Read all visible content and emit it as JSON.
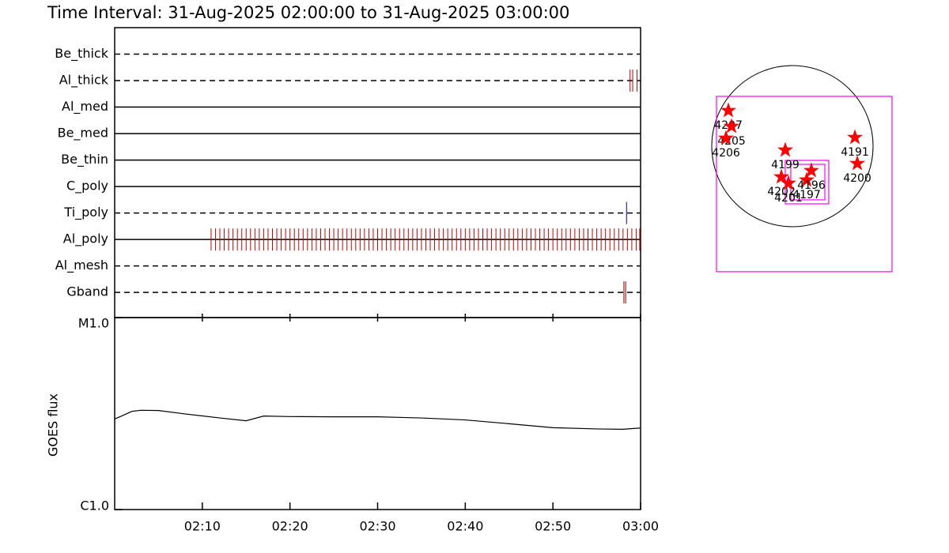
{
  "chart_data": [
    {
      "type": "timeline",
      "title": "Time Interval: 31-Aug-2025 02:00:00 to 31-Aug-2025 03:00:00",
      "xlim": [
        0,
        60
      ],
      "rows": [
        {
          "name": "Be_thick",
          "line": "dashed",
          "color": "#c00000",
          "events": []
        },
        {
          "name": "Al_thick",
          "line": "dashed",
          "color": "#c00000",
          "events": [
            58.8,
            59.1,
            59.6
          ]
        },
        {
          "name": "Al_med",
          "line": "solid",
          "color": "#c00000",
          "events": []
        },
        {
          "name": "Be_med",
          "line": "solid",
          "color": "#c00000",
          "events": []
        },
        {
          "name": "Be_thin",
          "line": "solid",
          "color": "#c00000",
          "events": []
        },
        {
          "name": "C_poly",
          "line": "solid",
          "color": "#c00000",
          "events": []
        },
        {
          "name": "Ti_poly",
          "line": "dashed",
          "color": "#0000c0",
          "events": [
            58.4
          ]
        },
        {
          "name": "Al_poly",
          "line": "solid",
          "color": "#d00000",
          "events": [
            11,
            11.5,
            12,
            12.5,
            13,
            13.5,
            14,
            14.5,
            15,
            15.5,
            16,
            16.5,
            17,
            17.5,
            18,
            18.5,
            19,
            19.5,
            20,
            20.5,
            21,
            21.5,
            22,
            22.5,
            23,
            23.5,
            24,
            24.5,
            25,
            25.5,
            26,
            26.5,
            27,
            27.5,
            28,
            28.5,
            29,
            29.5,
            30,
            30.5,
            31,
            31.5,
            32,
            32.5,
            33,
            33.5,
            34,
            34.5,
            35,
            35.5,
            36,
            36.5,
            37,
            37.5,
            38,
            38.5,
            39,
            39.5,
            40,
            40.5,
            41,
            41.5,
            42,
            42.5,
            43,
            43.5,
            44,
            44.5,
            45,
            45.5,
            46,
            46.5,
            47,
            47.5,
            48,
            48.5,
            49,
            49.5,
            50,
            50.5,
            51,
            51.5,
            52,
            52.5,
            53,
            53.5,
            54,
            54.5,
            55,
            55.5,
            56,
            56.5,
            57,
            57.5,
            58,
            58.5,
            59,
            59.5,
            59.9
          ]
        },
        {
          "name": "Al_mesh",
          "line": "dashed",
          "color": "#c00000",
          "events": []
        },
        {
          "name": "Gband",
          "line": "dashed",
          "color": "#800000",
          "events": [
            58.1,
            58.3
          ]
        }
      ]
    },
    {
      "type": "line",
      "ylabel": "GOES flux",
      "log": true,
      "color": "#000000",
      "xlim": [
        0,
        60
      ],
      "xticks": [
        {
          "value": 10,
          "label": "02:10"
        },
        {
          "value": 20,
          "label": "02:20"
        },
        {
          "value": 30,
          "label": "02:30"
        },
        {
          "value": 40,
          "label": "02:40"
        },
        {
          "value": 50,
          "label": "02:50"
        },
        {
          "value": 60,
          "label": "03:00"
        }
      ],
      "ylim": [
        1e-06,
        1e-05
      ],
      "yticks": [
        {
          "value": 1e-06,
          "label": "C1.0"
        },
        {
          "value": 1e-05,
          "label": "M1.0"
        }
      ],
      "x": [
        0,
        1,
        2,
        3,
        5,
        8,
        12,
        15,
        17,
        20,
        25,
        30,
        35,
        40,
        45,
        50,
        55,
        58,
        60
      ],
      "values": [
        2.96e-06,
        3.1e-06,
        3.25e-06,
        3.29e-06,
        3.28e-06,
        3.15e-06,
        3e-06,
        2.9e-06,
        3.07e-06,
        3.05e-06,
        3.04e-06,
        3.04e-06,
        3e-06,
        2.93e-06,
        2.8e-06,
        2.67e-06,
        2.63e-06,
        2.62e-06,
        2.66e-06
      ]
    },
    {
      "type": "map",
      "radius": 950,
      "disk_color": "#000000",
      "color": "#ff0000",
      "box_color": "#ff00ff",
      "x": [
        -754,
        -717,
        -782,
        -84,
        -130,
        -47,
        168,
        223,
        736,
        764
      ],
      "y": [
        419,
        233,
        93,
        -47,
        -363,
        -438,
        -400,
        -289,
        102,
        -205
      ],
      "labels": [
        "4207",
        "4205",
        "4206",
        "4199",
        "4202",
        "4201",
        "4197",
        "4196",
        "4191",
        "4200"
      ],
      "boxes": [
        {
          "xlim": [
            -894,
            1173
          ],
          "ylim": [
            -1480,
            587
          ]
        },
        {
          "xlim": [
            -84,
            428
          ],
          "ylim": [
            -680,
            -168
          ]
        },
        {
          "xlim": [
            -19,
            382
          ],
          "ylim": [
            -633,
            -214
          ]
        }
      ]
    }
  ]
}
